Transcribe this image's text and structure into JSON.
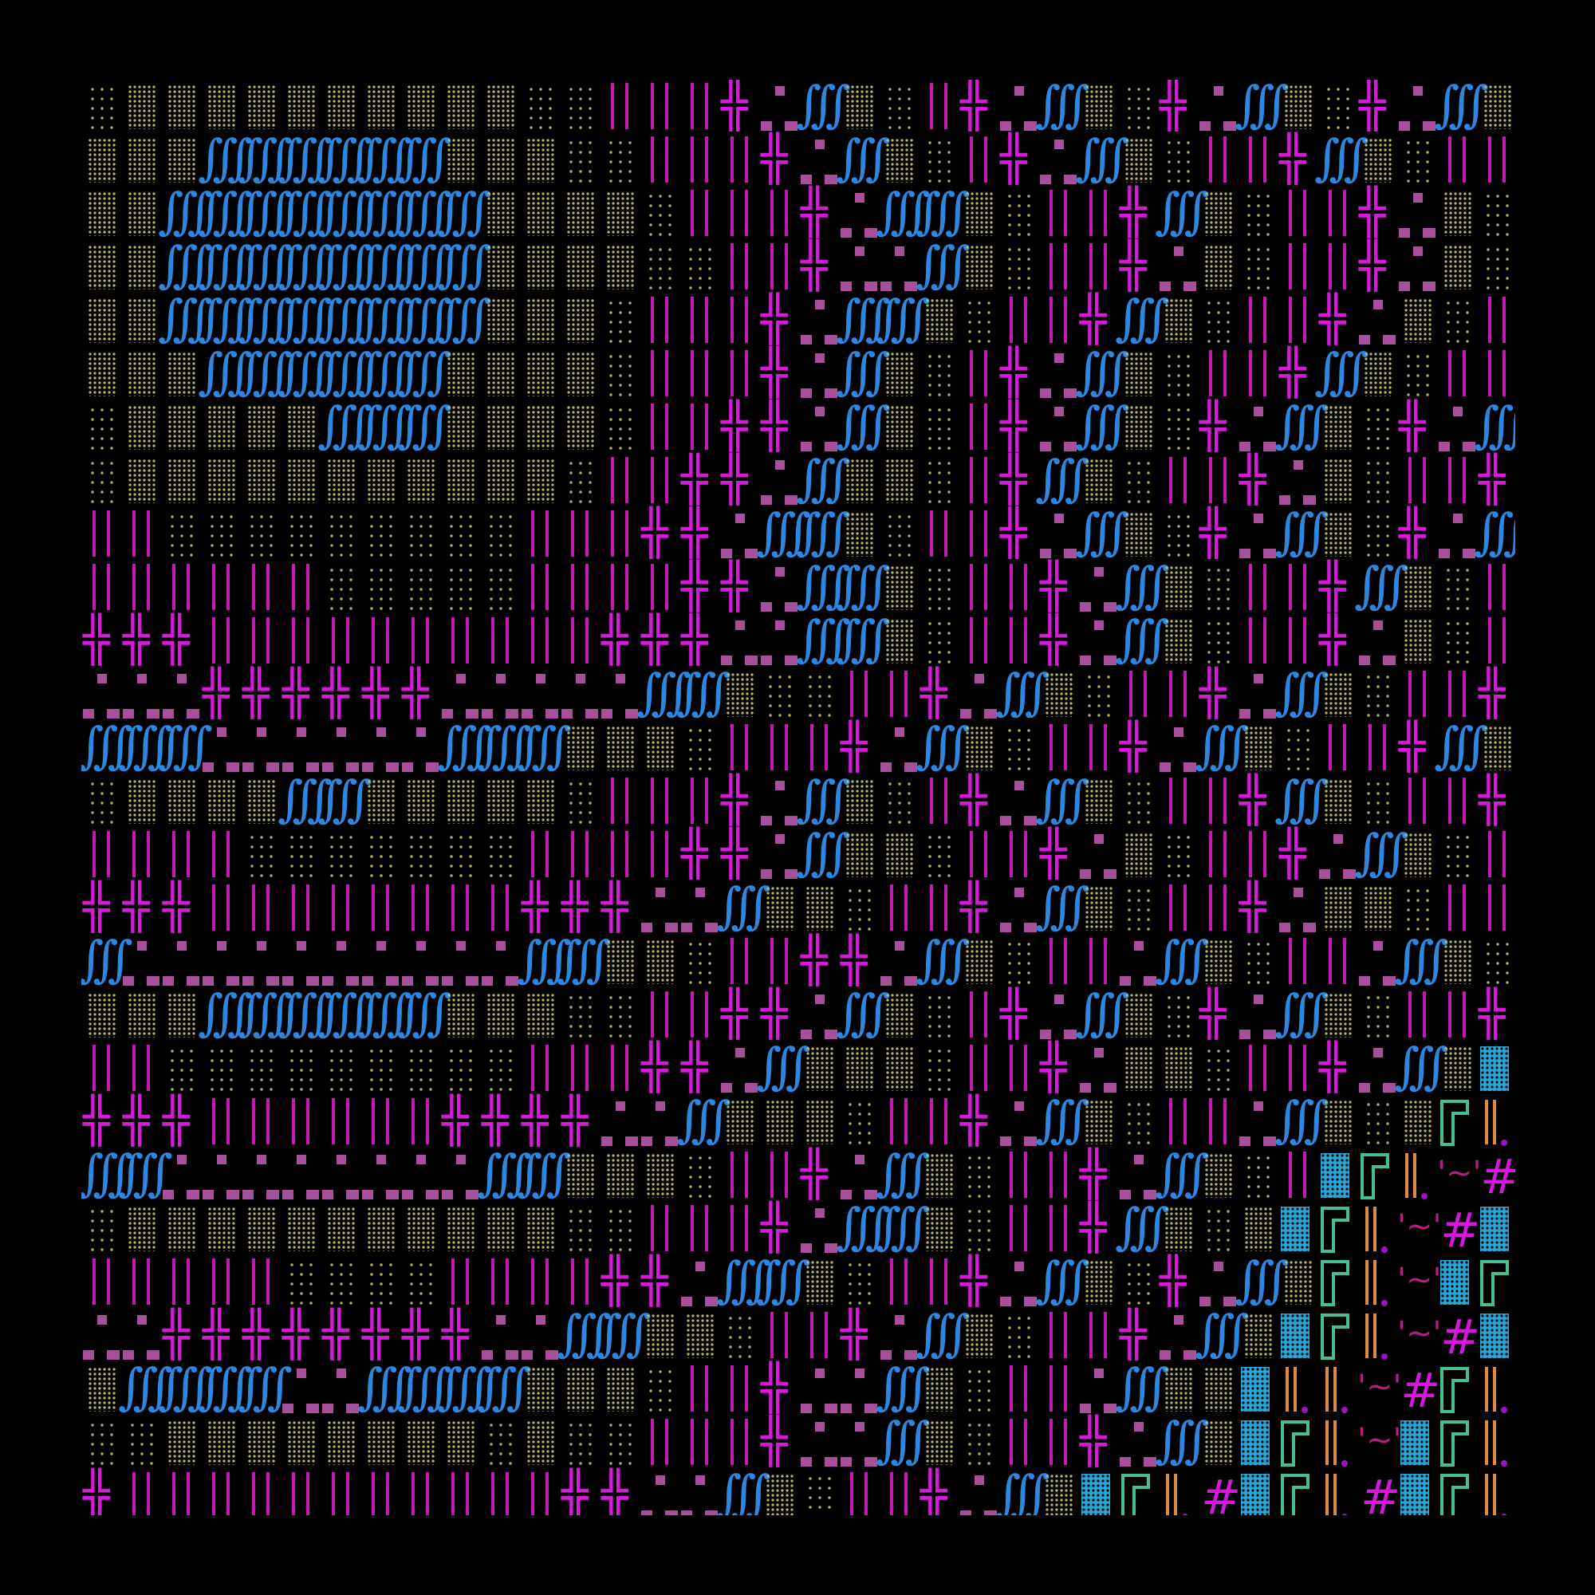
{
  "artwork": {
    "kind": "generative glyph mosaic",
    "colors": {
      "background": "#000000",
      "dots": "#b8b562",
      "integral": "#2d86e0",
      "bars": "#c417b4",
      "cross": "#d719d9",
      "squares": "#a84f9c",
      "block": "#29a4d4",
      "frame": "#46bf8e",
      "orange_bars": "#df8840",
      "tilde": "#b0207e",
      "hash": "#d717e0"
    },
    "legend": {
      ".": "sparse-dots",
      ":": "dense-dots",
      "S": "integral-glyphs",
      "|": "double-bars",
      "+": "double-cross",
      "_": "squares",
      "B": "dotted-block",
      "G": "frame",
      "O": "orange-bars",
      "~": "tilde",
      "#": "hash"
    },
    "rows": [
      ".::::::::::..|||+_S:.|+_S:.+_S:.+_S:",
      ":::SSSSSS:::..|||+_S:.|+_S:.||+S:.||",
      "::SSSSSSSS::::.|||+_SS:.||+S:.||+_:.",
      "::SSSSSSSS::::..||+__S:.||+_:.||+_:.",
      "::SSSSSSSS:::.|||+_SS:.||+S:.||+_:.|",
      ":::SSSSSS::::.|||+_S:.|+_S:.||+S:.||",
      ".:::::SSS::::.||++_S:.|+_S:.+_S:.+_S",
      ".:::::::::::.||++_S::.|+S:.||+_:.||+",
      "||.........|||++_SS:.||+_S:.+_S:.+_S",
      "||||||.....||||++_SS:.||+_S:.||+S:.|",
      "+++||||||||||+++__SS:.||+_S:.||+_:.|",
      "___++++++_____SS:..||+_S:.||+_S:.||+",
      "SSS______SSS:::.|||+_S:.||+_S:.||+S:",
      ".::::SS:::::.|||+_S:.|+_S:.||+S:.||+",
      "||||.......||||++_S::.||+_:.||+_S:.|",
      "+++||||||||+++__S::.||+_S:.||+_::.||",
      "S__________SS::.||++_S:.||_S:.||_S:.",
      ":::SSSSSS:::..||++_S:.|+_S:.+_S:.||+",
      "||.........|||++_S:::.||+_::.||+_S:B",
      "+++||||||++++__S:::.||+_S:.||_S:.:GO",
      "SS________SS:::.||+_S:.||+_S:.|BGO~#",
      ".:::::::::::..|||+_SS:.||+S:.:BGO~#B",
      "|||||....||||++_SS:.||+_S:.+_S:GO~BG",
      "__++++++++__SS::.||+_S:.||+_S:BGO~#B",
      ":SSSS__SSSS:::.||+__S:.||_S::BOO~#GO",
      "..::::::::.:..|||+__S:.||+_S:BGO~BGO",
      "+|||||||||||++__S:.||+_S:BGO#BGO#BGO"
    ]
  }
}
